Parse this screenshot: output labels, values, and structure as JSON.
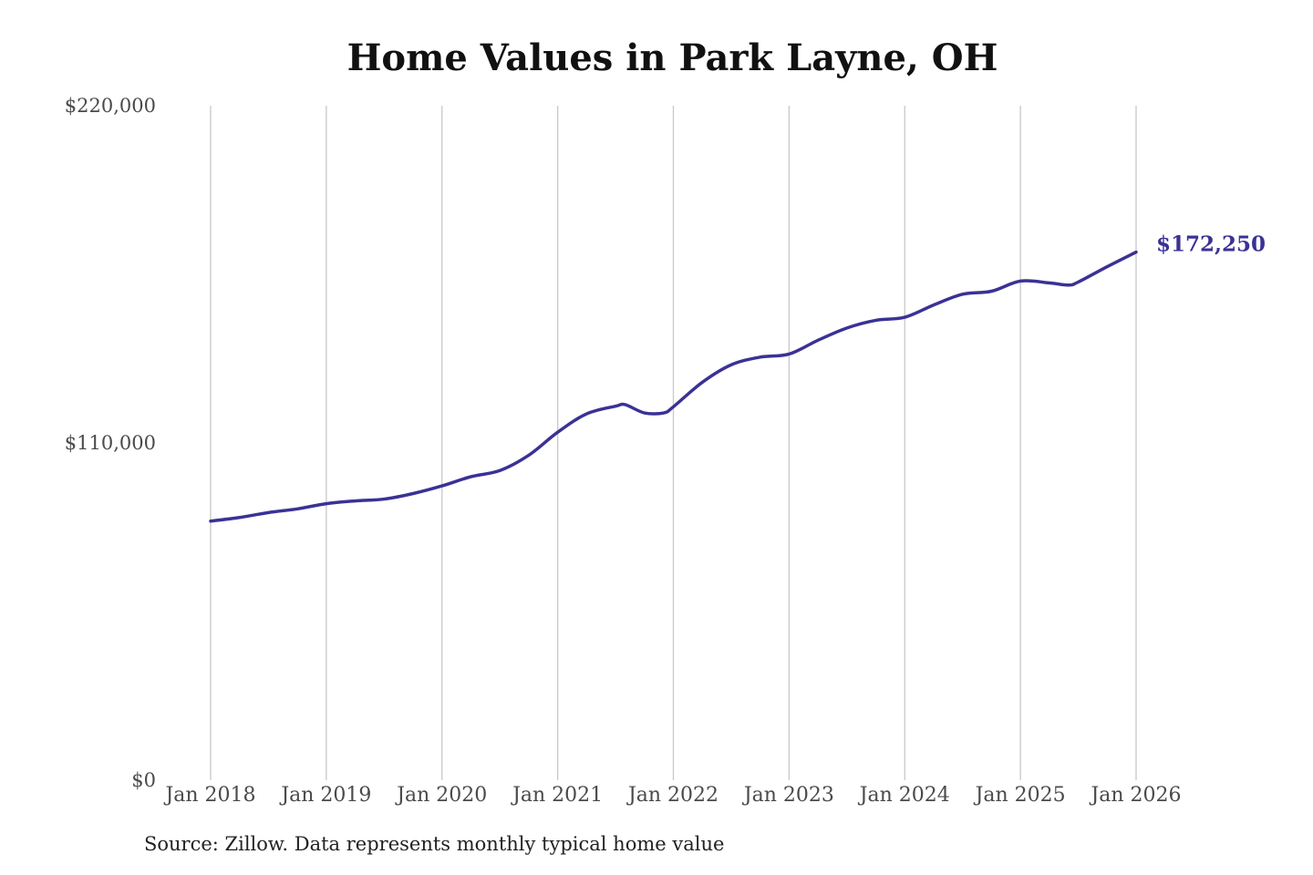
{
  "chart_data": {
    "type": "line",
    "title": "Home Values in Park Layne, OH",
    "xlabel": "",
    "ylabel": "",
    "x_ticks": [
      "Jan 2018",
      "Jan 2019",
      "Jan 2020",
      "Jan 2021",
      "Jan 2022",
      "Jan 2023",
      "Jan 2024",
      "Jan 2025",
      "Jan 2026"
    ],
    "y_ticks": [
      "$0",
      "$110,000",
      "$220,000"
    ],
    "ylim": [
      0,
      220000
    ],
    "xlim": [
      "2018-01",
      "2026-01"
    ],
    "grid": "vertical lines at x ticks",
    "line_color": "#3a3295",
    "end_label": "$172,250",
    "series": [
      {
        "points": [
          {
            "x": "2018-01",
            "y": 84500
          },
          {
            "x": "2018-04",
            "y": 85700
          },
          {
            "x": "2018-07",
            "y": 87300
          },
          {
            "x": "2018-10",
            "y": 88500
          },
          {
            "x": "2019-01",
            "y": 90200
          },
          {
            "x": "2019-04",
            "y": 91100
          },
          {
            "x": "2019-07",
            "y": 91700
          },
          {
            "x": "2019-10",
            "y": 93500
          },
          {
            "x": "2020-01",
            "y": 96000
          },
          {
            "x": "2020-04",
            "y": 99000
          },
          {
            "x": "2020-07",
            "y": 101000
          },
          {
            "x": "2020-10",
            "y": 106000
          },
          {
            "x": "2021-01",
            "y": 113500
          },
          {
            "x": "2021-04",
            "y": 119500
          },
          {
            "x": "2021-07",
            "y": 122000
          },
          {
            "x": "2021-08",
            "y": 122500
          },
          {
            "x": "2021-10",
            "y": 119800
          },
          {
            "x": "2021-12",
            "y": 119800
          },
          {
            "x": "2022-01",
            "y": 121800
          },
          {
            "x": "2022-04",
            "y": 129800
          },
          {
            "x": "2022-07",
            "y": 135500
          },
          {
            "x": "2022-10",
            "y": 138000
          },
          {
            "x": "2023-01",
            "y": 139000
          },
          {
            "x": "2023-04",
            "y": 143500
          },
          {
            "x": "2023-07",
            "y": 147500
          },
          {
            "x": "2023-10",
            "y": 150000
          },
          {
            "x": "2024-01",
            "y": 151000
          },
          {
            "x": "2024-04",
            "y": 155000
          },
          {
            "x": "2024-07",
            "y": 158500
          },
          {
            "x": "2024-10",
            "y": 159500
          },
          {
            "x": "2025-01",
            "y": 162800
          },
          {
            "x": "2025-04",
            "y": 162200
          },
          {
            "x": "2025-06",
            "y": 161500
          },
          {
            "x": "2025-07",
            "y": 162500
          },
          {
            "x": "2025-10",
            "y": 167500
          },
          {
            "x": "2026-01",
            "y": 172250
          }
        ]
      }
    ]
  },
  "source_note": "Source: Zillow. Data represents monthly typical home value"
}
